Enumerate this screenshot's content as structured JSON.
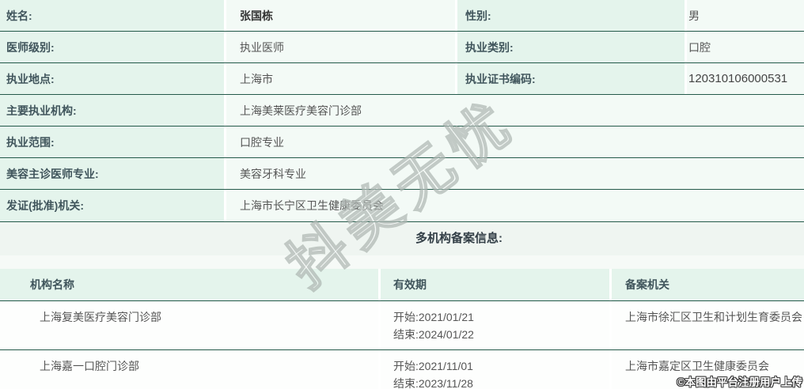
{
  "info_table": {
    "rows": [
      {
        "label1": "姓名:",
        "value1": "张国栋",
        "label2": "性别:",
        "value2": "男"
      },
      {
        "label1": "医师级别:",
        "value1": "执业医师",
        "label2": "执业类别:",
        "value2": "口腔"
      },
      {
        "label1": "执业地点:",
        "value1": "上海市",
        "label2": "执业证书编码:",
        "value2": "120310106000531"
      },
      {
        "label1": "主要执业机构:",
        "value1": "上海美莱医疗美容门诊部"
      },
      {
        "label1": "执业范围:",
        "value1": "口腔专业"
      },
      {
        "label1": "美容主诊医师专业:",
        "value1": "美容牙科专业"
      },
      {
        "label1": "发证(批准)机关:",
        "value1": "上海市长宁区卫生健康委员会"
      }
    ]
  },
  "section": {
    "title": "多机构备案信息:"
  },
  "org_table": {
    "headers": {
      "name": "机构名称",
      "validity": "有效期",
      "authority": "备案机关"
    },
    "rows": [
      {
        "name": "上海复美医疗美容门诊部",
        "start": "开始:2021/01/21",
        "end": "结束:2024/01/22",
        "authority": "上海市徐汇区卫生和计划生育委员会"
      },
      {
        "name": "上海嘉一口腔门诊部",
        "start": "开始:2021/11/01",
        "end": "结束:2023/11/28",
        "authority": "上海市嘉定区卫生健康委员会"
      }
    ]
  },
  "watermarks": {
    "diagonal": "抖美无忧",
    "copyright": "©本图由平台注册用户上传"
  },
  "colors": {
    "border": "#24594a",
    "label_cell_bg": "#e4f4ec",
    "value_cell_bg": "#f3faf6",
    "label_text": "#40555c",
    "value_text": "#555555",
    "section_band_bg": "#eff5f1",
    "header_row_bg": "#e4f4ec"
  }
}
